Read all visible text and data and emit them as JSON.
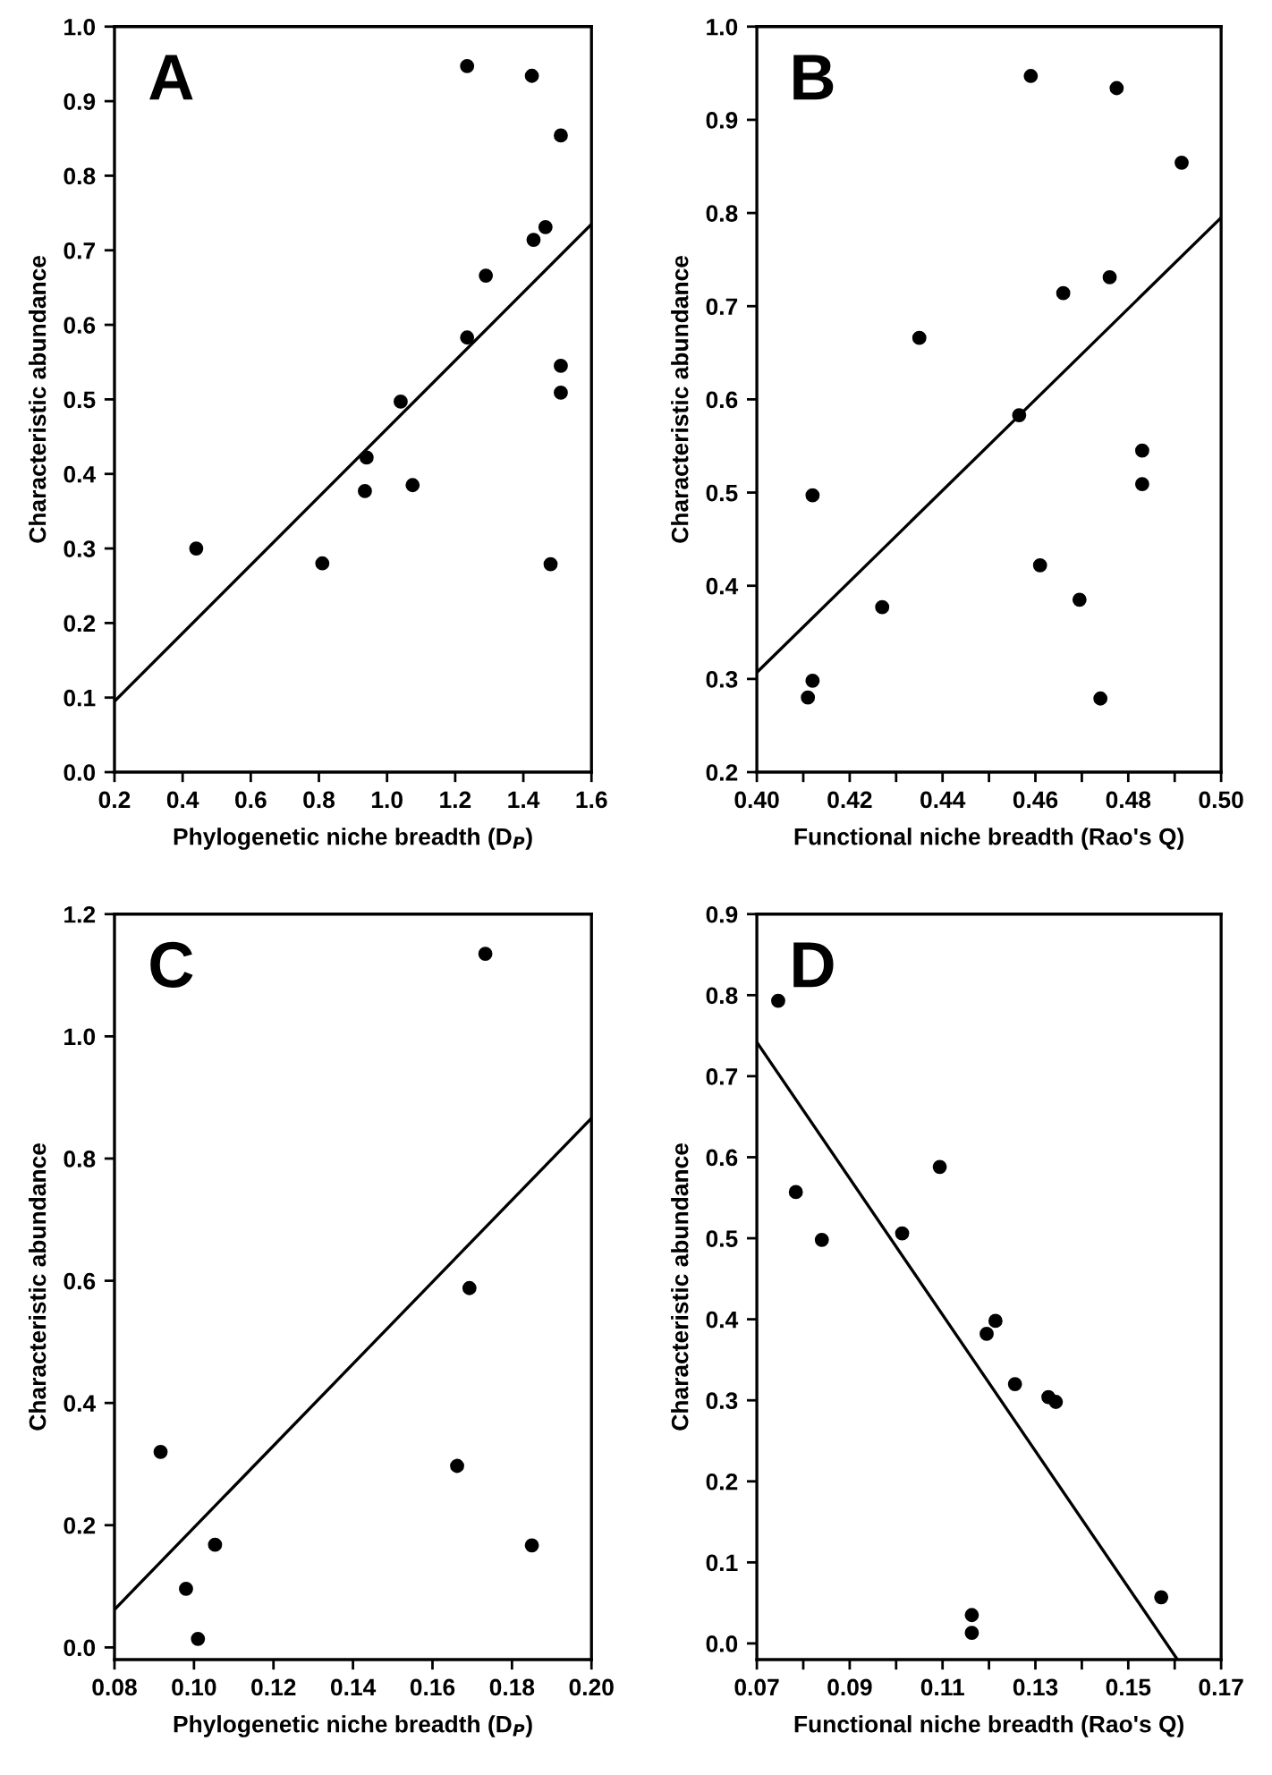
{
  "chart_data": [
    {
      "type": "scatter",
      "xlabel": "Phylogenetic niche breadth (D$_{P}$)",
      "ylabel": "Characteristic abundance",
      "annotations": [
        "A"
      ],
      "grid": false,
      "xlim": [
        0.2,
        1.6
      ],
      "ylim": [
        0.0,
        1.0
      ],
      "xticks": [
        0.2,
        0.4,
        0.6,
        0.8,
        {
          "value": 1.0,
          "label": "1.0"
        },
        1.2,
        1.4,
        1.6
      ],
      "yticks": [
        {
          "value": 0.0,
          "label": "0.0"
        },
        0.1,
        0.2,
        0.3,
        0.4,
        0.5,
        0.6,
        0.7,
        0.8,
        0.9,
        {
          "value": 1.0,
          "label": "1.0"
        }
      ],
      "series": [
        {
          "marker": "circle",
          "color": "#000000",
          "x": [
            0.44,
            0.81,
            0.935,
            0.94,
            1.04,
            1.075,
            1.235,
            1.235,
            1.29,
            1.425,
            1.43,
            1.465,
            1.51,
            1.51,
            1.51,
            1.48
          ],
          "values": [
            0.3,
            0.28,
            0.377,
            0.422,
            0.497,
            0.385,
            0.947,
            0.583,
            0.666,
            0.934,
            0.714,
            0.731,
            0.854,
            0.545,
            0.509,
            0.279
          ]
        },
        {
          "type": "line",
          "color": "#000000",
          "x": [
            0.2,
            1.6
          ],
          "values": [
            0.095,
            0.735
          ]
        }
      ]
    },
    {
      "type": "scatter",
      "xlabel": "Functional niche breadth (Rao's Q)",
      "ylabel": "Characteristic abundance",
      "annotations": [
        "B"
      ],
      "grid": false,
      "xlim": [
        0.4,
        0.5
      ],
      "ylim": [
        0.2,
        1.0
      ],
      "xticks": [
        {
          "value": 0.4,
          "label": "0.40"
        },
        {
          "value": 0.41,
          "label": null
        },
        {
          "value": 0.42,
          "label": "0.42"
        },
        {
          "value": 0.43,
          "label": null
        },
        {
          "value": 0.44,
          "label": "0.44"
        },
        {
          "value": 0.45,
          "label": null
        },
        {
          "value": 0.46,
          "label": "0.46"
        },
        {
          "value": 0.47,
          "label": null
        },
        {
          "value": 0.48,
          "label": "0.48"
        },
        {
          "value": 0.49,
          "label": null
        },
        {
          "value": 0.5,
          "label": "0.50"
        }
      ],
      "yticks": [
        0.2,
        0.3,
        0.4,
        0.5,
        0.6,
        0.7,
        0.8,
        0.9,
        {
          "value": 1.0,
          "label": "1.0"
        }
      ],
      "series": [
        {
          "marker": "circle",
          "color": "#000000",
          "x": [
            0.411,
            0.412,
            0.412,
            0.427,
            0.435,
            0.4565,
            0.459,
            0.461,
            0.466,
            0.4695,
            0.474,
            0.476,
            0.4775,
            0.483,
            0.483,
            0.4915
          ],
          "values": [
            0.28,
            0.298,
            0.497,
            0.377,
            0.666,
            0.583,
            0.947,
            0.422,
            0.714,
            0.385,
            0.279,
            0.731,
            0.934,
            0.545,
            0.509,
            0.854
          ]
        },
        {
          "type": "line",
          "color": "#000000",
          "x": [
            0.4,
            0.5
          ],
          "values": [
            0.307,
            0.795
          ]
        }
      ]
    },
    {
      "type": "scatter",
      "xlabel": "Phylogenetic niche breadth (D$_{P}$)",
      "ylabel": "Characteristic abundance",
      "annotations": [
        "C"
      ],
      "grid": false,
      "xlim": [
        0.08,
        0.2
      ],
      "ylim": [
        -0.02,
        1.2
      ],
      "xticks": [
        {
          "value": 0.08,
          "label": "0.08"
        },
        {
          "value": 0.1,
          "label": "0.10"
        },
        {
          "value": 0.12,
          "label": "0.12"
        },
        {
          "value": 0.14,
          "label": "0.14"
        },
        {
          "value": 0.16,
          "label": "0.16"
        },
        {
          "value": 0.18,
          "label": "0.18"
        },
        {
          "value": 0.2,
          "label": "0.20"
        }
      ],
      "yticks": [
        {
          "value": 0.0,
          "label": "0.0"
        },
        {
          "value": 0.2,
          "label": "0.2"
        },
        {
          "value": 0.4,
          "label": "0.4"
        },
        {
          "value": 0.6,
          "label": "0.6"
        },
        {
          "value": 0.8,
          "label": "0.8"
        },
        {
          "value": 1.0,
          "label": "1.0"
        },
        {
          "value": 1.2,
          "label": "1.2"
        }
      ],
      "series": [
        {
          "marker": "circle",
          "color": "#000000",
          "x": [
            0.0916,
            0.098,
            0.101,
            0.1053,
            0.1662,
            0.1693,
            0.1733,
            0.185
          ],
          "values": [
            0.32,
            0.096,
            0.014,
            0.168,
            0.297,
            0.588,
            1.135,
            0.167
          ]
        },
        {
          "type": "line",
          "color": "#000000",
          "x": [
            0.08,
            0.2
          ],
          "values": [
            0.062,
            0.866
          ]
        }
      ]
    },
    {
      "type": "scatter",
      "xlabel": "Functional niche breadth (Rao's Q)",
      "ylabel": "Characteristic abundance",
      "annotations": [
        "D"
      ],
      "grid": false,
      "xlim": [
        0.07,
        0.17
      ],
      "ylim": [
        -0.02,
        0.9
      ],
      "xticks": [
        {
          "value": 0.07,
          "label": "0.07"
        },
        {
          "value": 0.08,
          "label": null
        },
        {
          "value": 0.09,
          "label": "0.09"
        },
        {
          "value": 0.1,
          "label": null
        },
        {
          "value": 0.11,
          "label": "0.11"
        },
        {
          "value": 0.12,
          "label": null
        },
        {
          "value": 0.13,
          "label": "0.13"
        },
        {
          "value": 0.14,
          "label": null
        },
        {
          "value": 0.15,
          "label": "0.15"
        },
        {
          "value": 0.16,
          "label": null
        },
        {
          "value": 0.17,
          "label": "0.17"
        }
      ],
      "yticks": [
        {
          "value": 0.0,
          "label": "0.0"
        },
        {
          "value": 0.1,
          "label": "0.1"
        },
        {
          "value": 0.2,
          "label": "0.2"
        },
        {
          "value": 0.3,
          "label": "0.3"
        },
        {
          "value": 0.4,
          "label": "0.4"
        },
        {
          "value": 0.5,
          "label": "0.5"
        },
        {
          "value": 0.6,
          "label": "0.6"
        },
        {
          "value": 0.7,
          "label": "0.7"
        },
        {
          "value": 0.8,
          "label": "0.8"
        },
        {
          "value": 0.9,
          "label": "0.9"
        }
      ],
      "series": [
        {
          "marker": "circle",
          "color": "#000000",
          "x": [
            0.0746,
            0.0784,
            0.084,
            0.1013,
            0.1094,
            0.1195,
            0.1214,
            0.1256,
            0.1328,
            0.1344,
            0.1163,
            0.1163,
            0.1571
          ],
          "values": [
            0.793,
            0.557,
            0.498,
            0.506,
            0.588,
            0.382,
            0.398,
            0.32,
            0.304,
            0.298,
            0.035,
            0.013,
            0.057
          ]
        },
        {
          "type": "line",
          "color": "#000000",
          "x": [
            0.07,
            0.1606
          ],
          "values": [
            0.742,
            -0.02
          ]
        }
      ]
    }
  ]
}
